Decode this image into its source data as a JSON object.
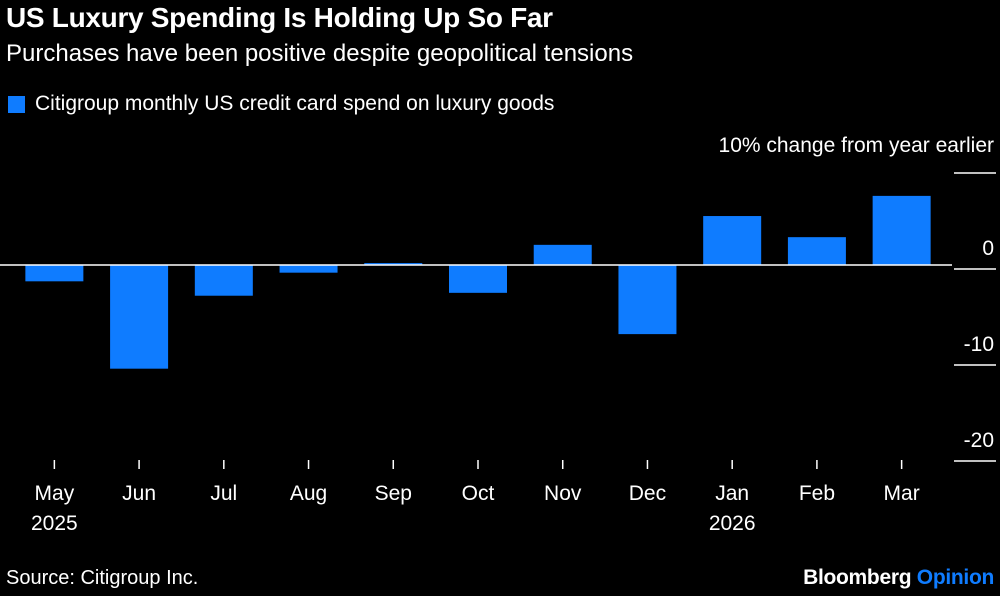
{
  "title": "US Luxury Spending Is Holding Up So Far",
  "subtitle": "Purchases have been positive despite geopolitical tensions",
  "source": "Source: Citigroup Inc.",
  "brand": {
    "name": "Bloomberg",
    "suffix": "Opinion"
  },
  "colors": {
    "bar": "#0f7cff",
    "background": "#000000",
    "text": "#ffffff",
    "brand_accent": "#0f7cff"
  },
  "chart_data": {
    "type": "bar",
    "title": "US Luxury Spending Is Holding Up So Far",
    "subtitle": "Purchases have been positive despite geopolitical tensions",
    "legend": [
      "Citigroup monthly US credit card spend on luxury goods"
    ],
    "unit_label": "10% change from year earlier",
    "categories": [
      "May",
      "Jun",
      "Jul",
      "Aug",
      "Sep",
      "Oct",
      "Nov",
      "Dec",
      "Jan",
      "Feb",
      "Mar"
    ],
    "year_labels": {
      "May": "2025",
      "Jan": "2026"
    },
    "values": [
      -1.7,
      -10.8,
      -3.2,
      -0.8,
      0.2,
      -2.9,
      2.1,
      -7.2,
      5.1,
      2.9,
      7.2
    ],
    "y_ticks": [
      10,
      0,
      -10,
      -20
    ],
    "y_tick_labels": [
      "",
      "0",
      "-10",
      "-20"
    ],
    "ylim": [
      -21,
      10
    ],
    "grid": false,
    "y_axis_side": "right",
    "legend_position": "top-left"
  }
}
